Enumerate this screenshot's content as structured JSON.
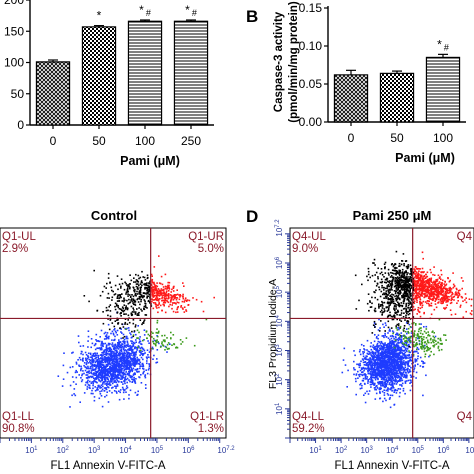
{
  "chart_data": [
    {
      "panel": "",
      "type": "bar",
      "title": "",
      "xlabel": "Pami (μM)",
      "ylabel": "",
      "categories": [
        "0",
        "50",
        "100",
        "250"
      ],
      "values": [
        101,
        157,
        166,
        166
      ],
      "errors": [
        3,
        2,
        2,
        2
      ],
      "annotations": [
        "",
        "*",
        "* #",
        "* #"
      ],
      "ylim": [
        0,
        200
      ],
      "yticks": [
        "0",
        "50",
        "100",
        "150",
        "200"
      ],
      "patterns": [
        "crosshatch",
        "checker",
        "hlines",
        "hlines"
      ]
    },
    {
      "panel": "B",
      "type": "bar",
      "title": "",
      "xlabel": "Pami (μM)",
      "ylabel": "Caspase-3 activity",
      "ylabel2": "(pmol/min/mg protein)",
      "categories": [
        "0",
        "50",
        "100"
      ],
      "values": [
        0.062,
        0.064,
        0.085
      ],
      "errors": [
        0.006,
        0.003,
        0.004
      ],
      "annotations": [
        "",
        "",
        "* #"
      ],
      "ylim": [
        0,
        0.15
      ],
      "yticks": [
        "0.00",
        "0.05",
        "0.10",
        "0.15"
      ],
      "patterns": [
        "crosshatch",
        "checker",
        "hlines"
      ]
    },
    {
      "panel": "",
      "type": "scatter",
      "title": "Control",
      "xlabel": "FL1 Annexin V-FITC-A",
      "ylabel": "",
      "quadrants": [
        {
          "label": "Q1-UL",
          "value": "2.9%"
        },
        {
          "label": "Q1-UR",
          "value": "5.0%"
        },
        {
          "label": "Q1-LL",
          "value": "90.8%"
        },
        {
          "label": "Q1-LR",
          "value": "1.3%"
        }
      ],
      "x_tick_labels": [
        "10^1",
        "10^2",
        "10^3",
        "10^4",
        "10^5",
        "10^6",
        "10^7.2"
      ],
      "xlim_log10": [
        0,
        7.2
      ],
      "ylim_log10": [
        0,
        7.2
      ],
      "gate_log10": {
        "x": 4.8,
        "y": 4.1
      },
      "colors": {
        "LL": "#1f3cff",
        "UR": "#ff1a1a",
        "UL": "#000000",
        "LR": "#3a9a1a",
        "gate": "#8a1a2a"
      }
    },
    {
      "panel": "D",
      "type": "scatter",
      "title": "Pami 250 μM",
      "xlabel": "FL1 Annexin V-FITC-A",
      "ylabel": "FL3 Propidium Iodide-A",
      "quadrants": [
        {
          "label": "Q4-UL",
          "value": "9.0%"
        },
        {
          "label": "Q4",
          "value": ""
        },
        {
          "label": "Q4-LL",
          "value": "59.2%"
        },
        {
          "label": "Q4",
          "value": ""
        }
      ],
      "x_tick_labels": [
        "10^1",
        "10^2",
        "10^3",
        "10^4",
        "10^5",
        "10^6",
        "10^7.2"
      ],
      "y_tick_labels": [
        "10^1",
        "10^2",
        "10^3",
        "10^4",
        "10^5",
        "10^6",
        "10^7.2"
      ],
      "xlim_log10": [
        0,
        7.2
      ],
      "ylim_log10": [
        0,
        7.2
      ],
      "gate_log10": {
        "x": 4.8,
        "y": 4.1
      },
      "colors": {
        "LL": "#1f3cff",
        "UR": "#ff1a1a",
        "UL": "#000000",
        "LR": "#3a9a1a",
        "gate": "#8a1a2a"
      }
    }
  ]
}
